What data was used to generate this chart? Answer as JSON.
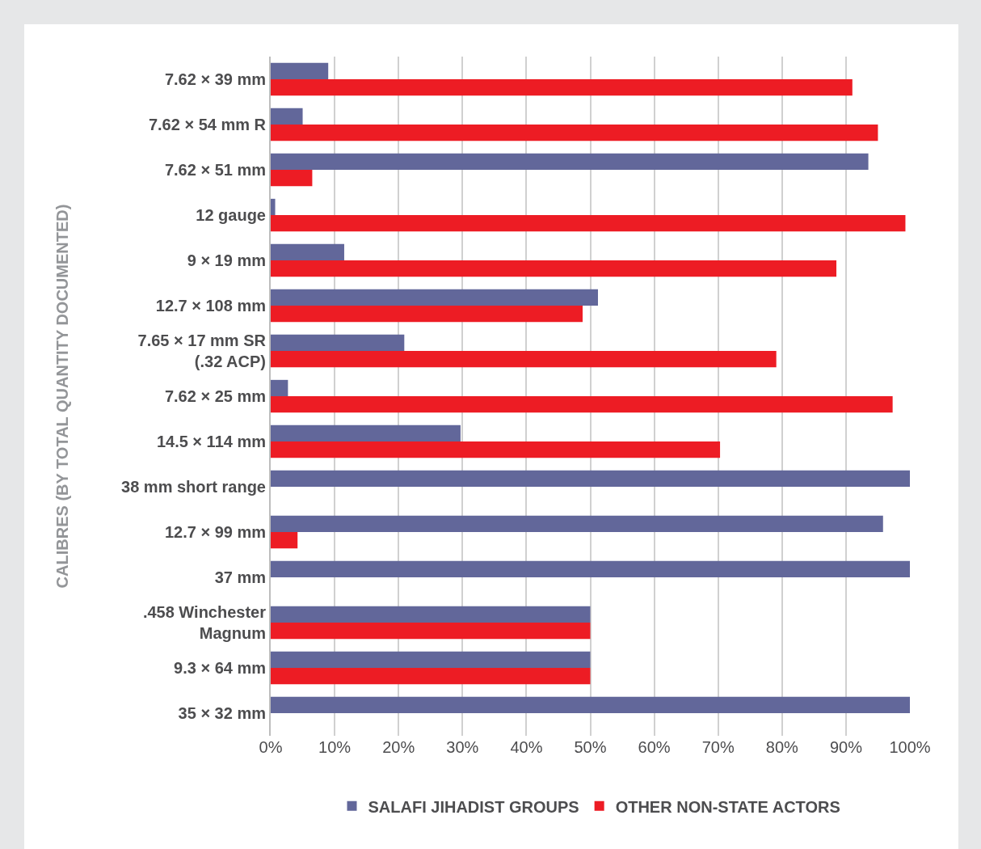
{
  "chart_data": {
    "type": "bar",
    "orientation": "horizontal",
    "ylabel": "CALIBRES (BY TOTAL QUANTITY DOCUMENTED)",
    "categories": [
      "7.62 × 39 mm",
      "7.62 × 54 mm R",
      "7.62 × 51 mm",
      "12 gauge",
      "9 × 19 mm",
      "12.7 × 108 mm",
      "7.65 × 17 mm SR\n(.32 ACP)",
      "7.62 × 25 mm",
      "14.5 × 114 mm",
      "38 mm short range",
      "12.7 × 99 mm",
      "37 mm",
      ".458 Winchester\nMagnum",
      "9.3 × 64 mm",
      "35 × 32 mm"
    ],
    "series": [
      {
        "name": "SALAFI JIHADIST GROUPS",
        "color": "#62679a",
        "values": [
          9,
          5,
          93.5,
          0.7,
          11.5,
          51.2,
          20.9,
          2.7,
          29.7,
          100,
          95.8,
          100,
          50,
          50,
          100
        ]
      },
      {
        "name": "OTHER NON-STATE ACTORS",
        "color": "#ed1c24",
        "values": [
          91,
          95,
          6.5,
          99.3,
          88.5,
          48.8,
          79.1,
          97.3,
          70.3,
          null,
          4.2,
          null,
          50,
          50,
          null
        ]
      }
    ],
    "xlim": [
      0,
      100
    ],
    "xticks": [
      {
        "value": 0,
        "label": "0%"
      },
      {
        "value": 10,
        "label": "10%"
      },
      {
        "value": 20,
        "label": "20%"
      },
      {
        "value": 30,
        "label": "30%"
      },
      {
        "value": 40,
        "label": "40%"
      },
      {
        "value": 50,
        "label": "50%"
      },
      {
        "value": 60,
        "label": "60%"
      },
      {
        "value": 70,
        "label": "70%"
      },
      {
        "value": 80,
        "label": "80%"
      },
      {
        "value": 90,
        "label": "90%"
      },
      {
        "value": 100,
        "label": "100%"
      }
    ],
    "grid": "x",
    "legend": "bottom"
  }
}
